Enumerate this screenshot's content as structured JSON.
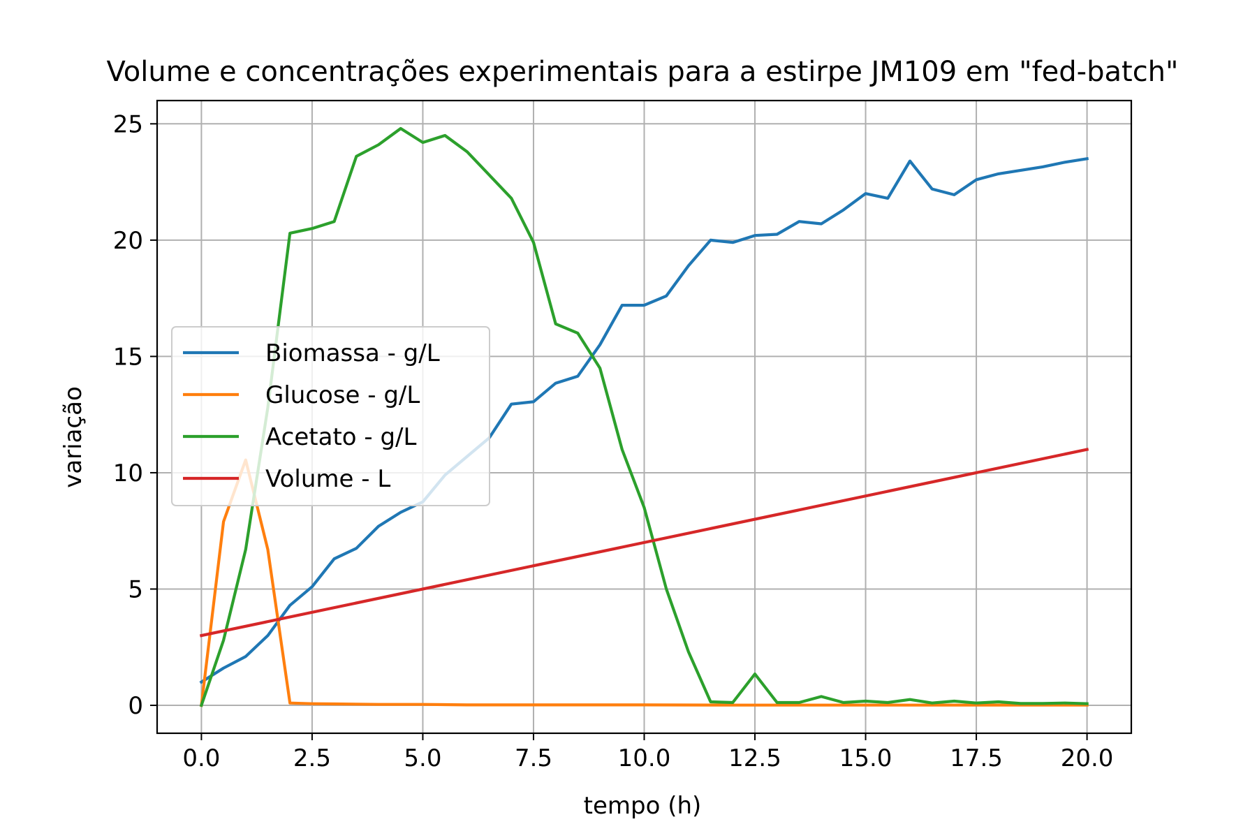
{
  "chart_data": {
    "type": "line",
    "title": "Volume e concentrações experimentais para a estirpe JM109 em \"fed-batch\"",
    "xlabel": "tempo (h)",
    "ylabel": "variação",
    "xlim": [
      -1.0,
      21.0
    ],
    "ylim": [
      -1.2,
      26.0
    ],
    "xticks": [
      0.0,
      2.5,
      5.0,
      7.5,
      10.0,
      12.5,
      15.0,
      17.5,
      20.0
    ],
    "xtick_labels": [
      "0.0",
      "2.5",
      "5.0",
      "7.5",
      "10.0",
      "12.5",
      "15.0",
      "17.5",
      "20.0"
    ],
    "yticks": [
      0,
      5,
      10,
      15,
      20,
      25
    ],
    "ytick_labels": [
      "0",
      "5",
      "10",
      "15",
      "20",
      "25"
    ],
    "grid": true,
    "legend_position": "center-left",
    "series": [
      {
        "name": "Biomassa - g/L",
        "color": "#1f77b4",
        "points": [
          [
            0,
            1.0
          ],
          [
            0.5,
            1.6
          ],
          [
            1,
            2.1
          ],
          [
            1.5,
            3.0
          ],
          [
            2,
            4.3
          ],
          [
            2.5,
            5.1
          ],
          [
            3,
            6.3
          ],
          [
            3.5,
            6.75
          ],
          [
            4,
            7.7
          ],
          [
            4.5,
            8.3
          ],
          [
            5,
            8.75
          ],
          [
            5.5,
            9.9
          ],
          [
            6,
            10.7
          ],
          [
            6.5,
            11.5
          ],
          [
            7,
            12.95
          ],
          [
            7.5,
            13.05
          ],
          [
            8,
            13.85
          ],
          [
            8.5,
            14.15
          ],
          [
            9,
            15.5
          ],
          [
            9.5,
            17.2
          ],
          [
            10,
            17.2
          ],
          [
            10.5,
            17.6
          ],
          [
            11,
            18.9
          ],
          [
            11.5,
            20.0
          ],
          [
            12,
            19.9
          ],
          [
            12.5,
            20.2
          ],
          [
            13,
            20.25
          ],
          [
            13.5,
            20.8
          ],
          [
            14,
            20.7
          ],
          [
            14.5,
            21.3
          ],
          [
            15,
            22.0
          ],
          [
            15.5,
            21.8
          ],
          [
            16,
            23.4
          ],
          [
            16.5,
            22.2
          ],
          [
            17,
            21.95
          ],
          [
            17.5,
            22.6
          ],
          [
            18,
            22.85
          ],
          [
            18.5,
            23.0
          ],
          [
            19,
            23.15
          ],
          [
            19.5,
            23.35
          ],
          [
            20,
            23.5
          ]
        ]
      },
      {
        "name": "Glucose - g/L",
        "color": "#ff7f0e",
        "points": [
          [
            0,
            0.0
          ],
          [
            0.5,
            7.9
          ],
          [
            1,
            10.55
          ],
          [
            1.5,
            6.7
          ],
          [
            2,
            0.1
          ],
          [
            2.5,
            0.07
          ],
          [
            3,
            0.06
          ],
          [
            4,
            0.04
          ],
          [
            5,
            0.04
          ],
          [
            6,
            0.02
          ],
          [
            8,
            0.02
          ],
          [
            10,
            0.02
          ],
          [
            12,
            0.01
          ],
          [
            14,
            0.01
          ],
          [
            16,
            0.01
          ],
          [
            18,
            0.01
          ],
          [
            20,
            0.01
          ]
        ]
      },
      {
        "name": "Acetato - g/L",
        "color": "#2ca02c",
        "points": [
          [
            0,
            0.0
          ],
          [
            0.5,
            2.8
          ],
          [
            1,
            6.7
          ],
          [
            1.5,
            12.8
          ],
          [
            2,
            20.3
          ],
          [
            2.5,
            20.5
          ],
          [
            3,
            20.8
          ],
          [
            3.5,
            23.6
          ],
          [
            4,
            24.1
          ],
          [
            4.5,
            24.8
          ],
          [
            5,
            24.2
          ],
          [
            5.5,
            24.5
          ],
          [
            6,
            23.8
          ],
          [
            6.5,
            22.8
          ],
          [
            7,
            21.8
          ],
          [
            7.5,
            19.9
          ],
          [
            8,
            16.4
          ],
          [
            8.5,
            16.0
          ],
          [
            9,
            14.5
          ],
          [
            9.5,
            11.0
          ],
          [
            10,
            8.5
          ],
          [
            10.5,
            5.0
          ],
          [
            11,
            2.3
          ],
          [
            11.5,
            0.15
          ],
          [
            12,
            0.12
          ],
          [
            12.5,
            1.35
          ],
          [
            13,
            0.12
          ],
          [
            13.5,
            0.12
          ],
          [
            14,
            0.38
          ],
          [
            14.5,
            0.12
          ],
          [
            15,
            0.18
          ],
          [
            15.5,
            0.12
          ],
          [
            16,
            0.25
          ],
          [
            16.5,
            0.1
          ],
          [
            17,
            0.18
          ],
          [
            17.5,
            0.1
          ],
          [
            18,
            0.15
          ],
          [
            18.5,
            0.08
          ],
          [
            19,
            0.08
          ],
          [
            19.5,
            0.1
          ],
          [
            20,
            0.07
          ]
        ]
      },
      {
        "name": "Volume - L",
        "color": "#d62728",
        "points": [
          [
            0,
            3.0
          ],
          [
            20,
            11.0
          ]
        ]
      }
    ]
  }
}
